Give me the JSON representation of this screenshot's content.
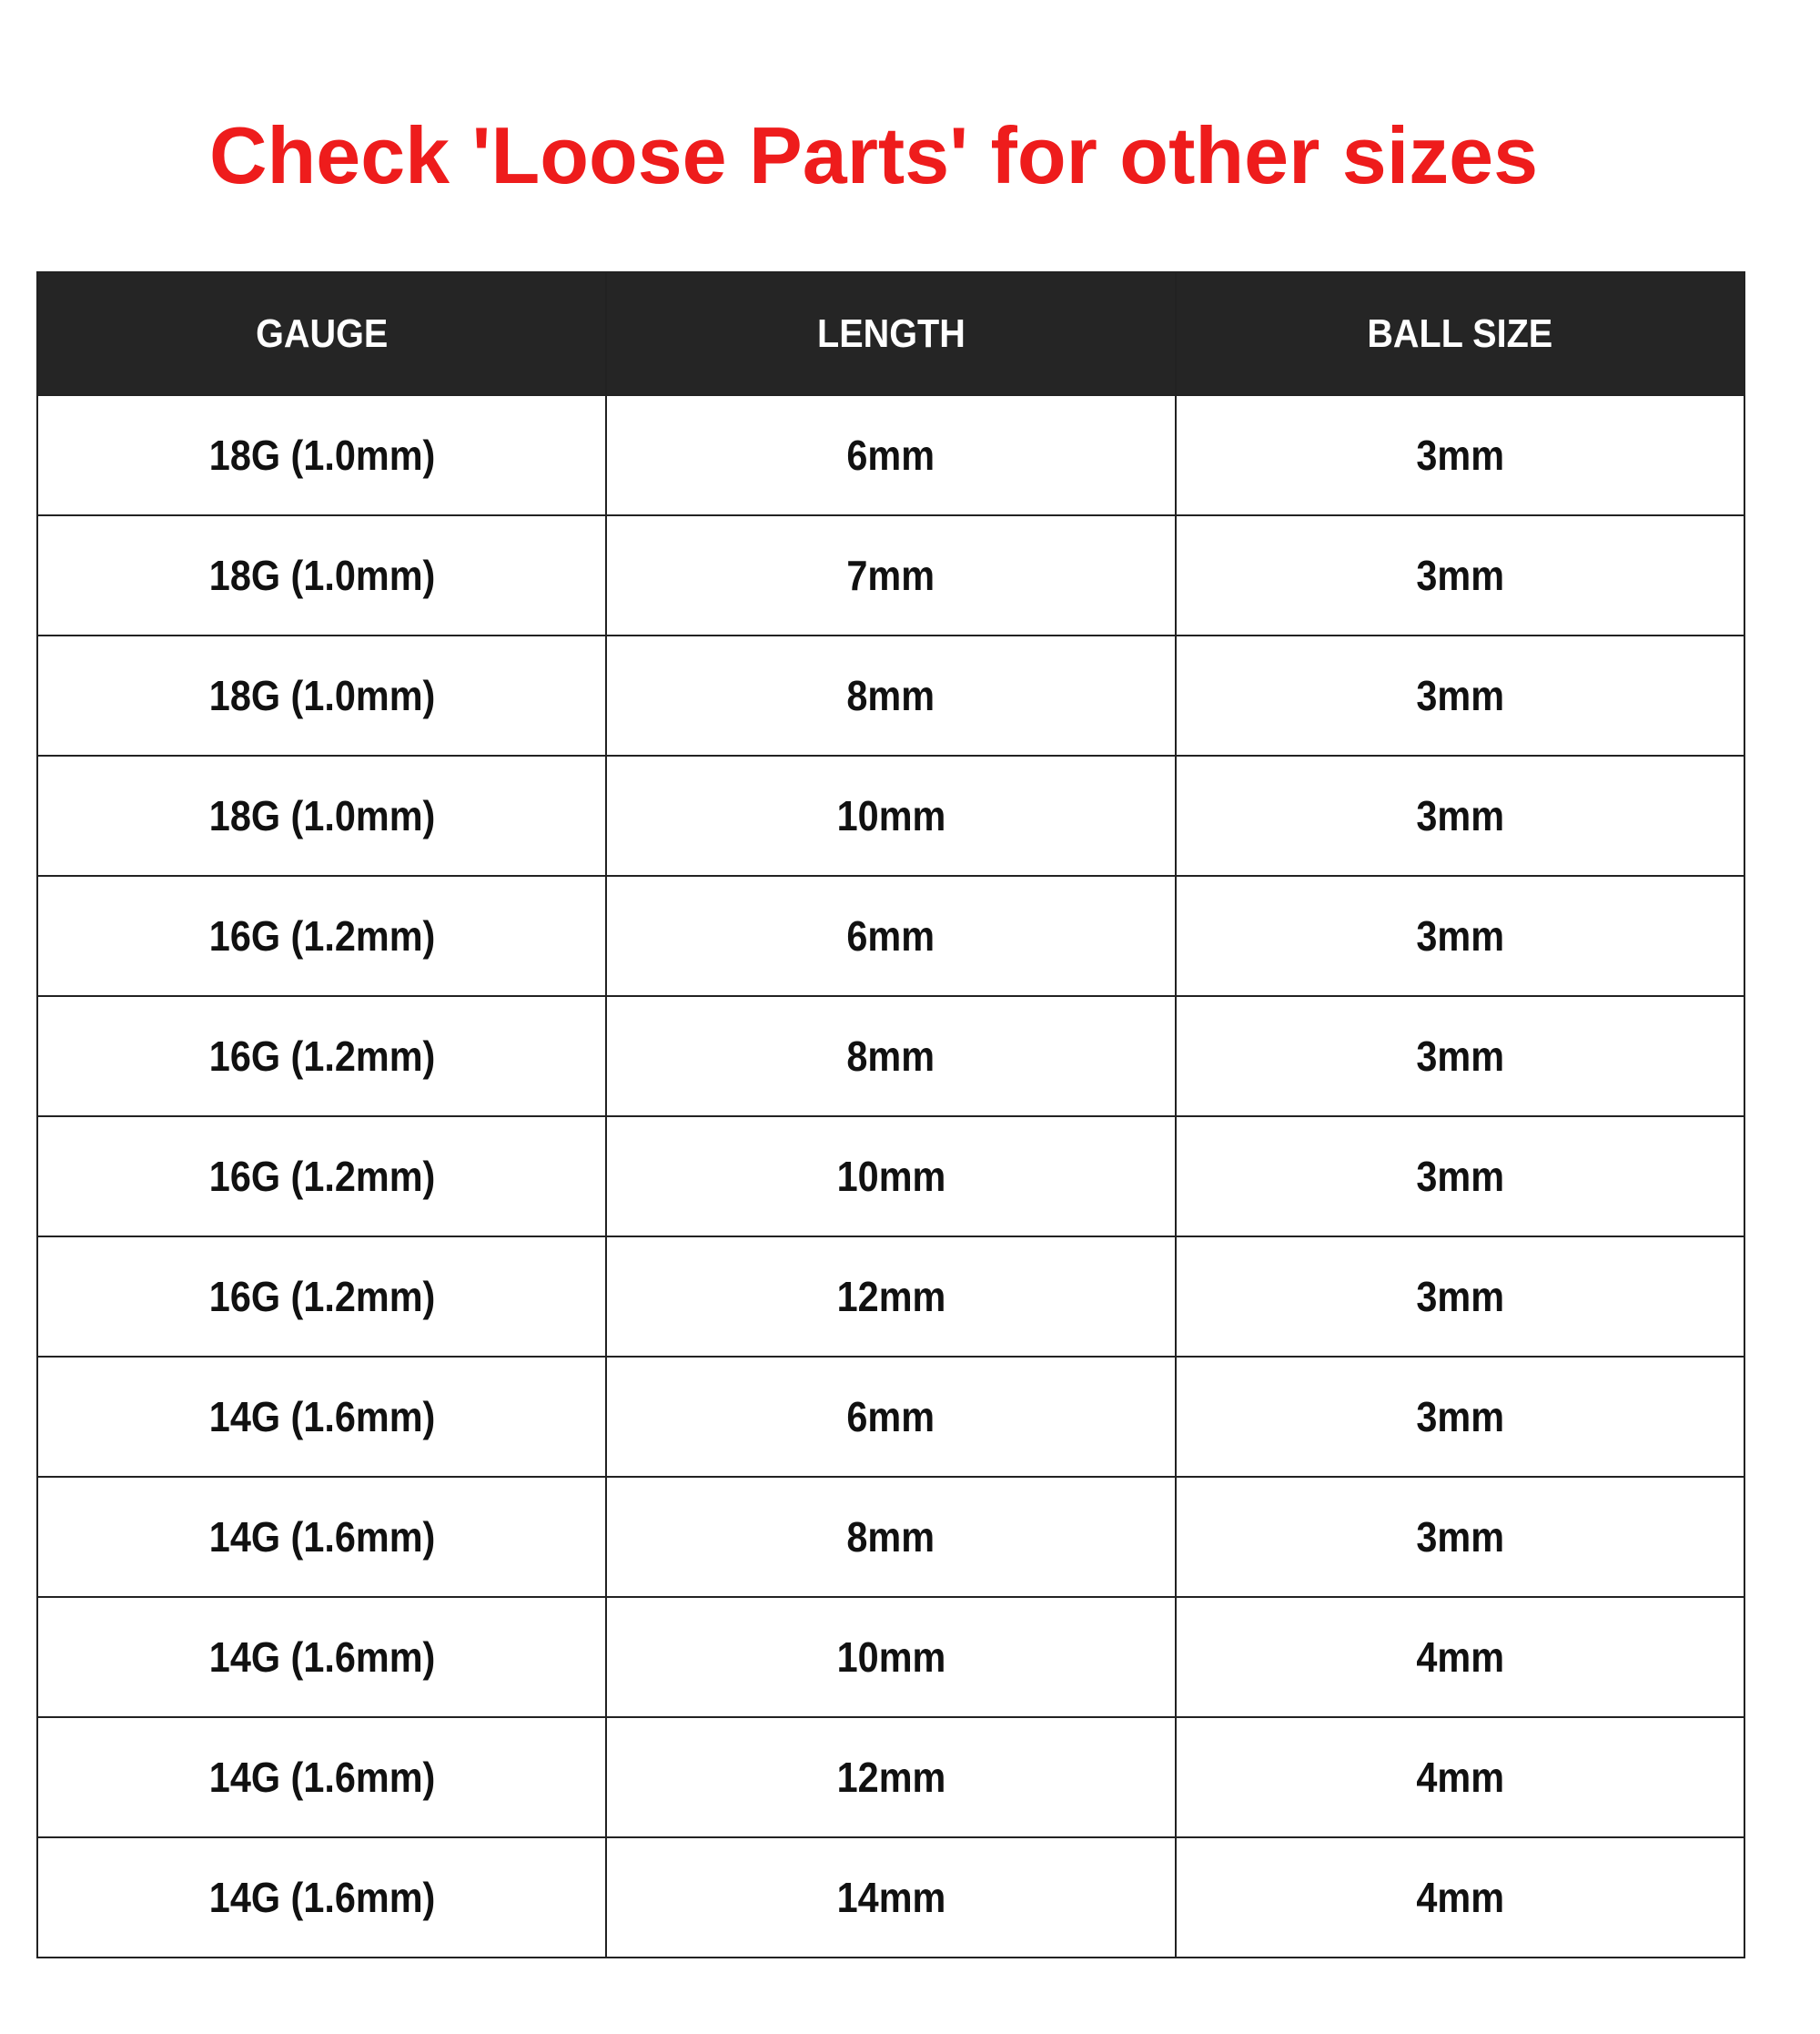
{
  "title": "Check 'Loose Parts' for other sizes",
  "colors": {
    "title": "#ee1c1c",
    "header_bg": "#252525"
  },
  "table": {
    "headers": [
      "GAUGE",
      "LENGTH",
      "BALL SIZE"
    ],
    "rows": [
      [
        "18G (1.0mm)",
        "6mm",
        "3mm"
      ],
      [
        "18G (1.0mm)",
        "7mm",
        "3mm"
      ],
      [
        "18G (1.0mm)",
        "8mm",
        "3mm"
      ],
      [
        "18G (1.0mm)",
        "10mm",
        "3mm"
      ],
      [
        "16G (1.2mm)",
        "6mm",
        "3mm"
      ],
      [
        "16G (1.2mm)",
        "8mm",
        "3mm"
      ],
      [
        "16G (1.2mm)",
        "10mm",
        "3mm"
      ],
      [
        "16G (1.2mm)",
        "12mm",
        "3mm"
      ],
      [
        "14G (1.6mm)",
        "6mm",
        "3mm"
      ],
      [
        "14G (1.6mm)",
        "8mm",
        "3mm"
      ],
      [
        "14G (1.6mm)",
        "10mm",
        "4mm"
      ],
      [
        "14G (1.6mm)",
        "12mm",
        "4mm"
      ],
      [
        "14G (1.6mm)",
        "14mm",
        "4mm"
      ]
    ]
  }
}
